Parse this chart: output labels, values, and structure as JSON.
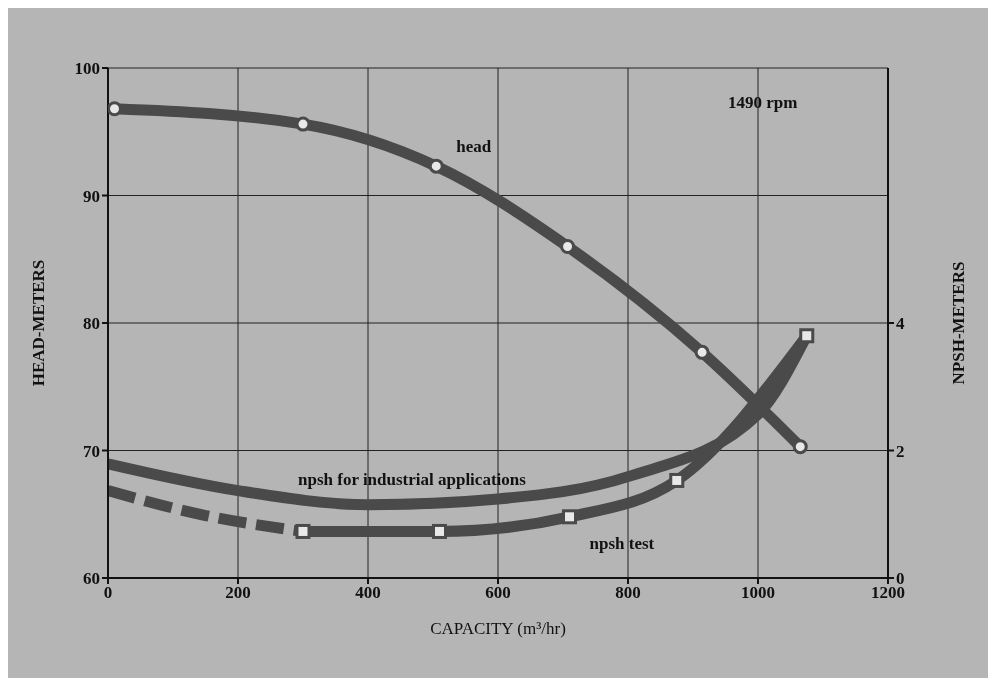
{
  "chart_data": {
    "type": "line",
    "xlabel": "CAPACITY (m³/hr)",
    "ylabel": "HEAD-METERS",
    "y2label": "NPSH-METERS",
    "xlim": [
      0,
      1200
    ],
    "xticks": [
      0,
      200,
      400,
      600,
      800,
      1000,
      1200
    ],
    "ylim": [
      60,
      100
    ],
    "yticks": [
      60,
      70,
      80,
      90,
      100
    ],
    "y2lim": [
      0,
      8
    ],
    "y2ticks": [
      0,
      2,
      4
    ],
    "grid": true,
    "line_style": "solid",
    "annotations": [
      "1490 rpm"
    ],
    "series": [
      {
        "name": "head",
        "color": "#4a4a4a",
        "marker": "circle",
        "x": [
          10,
          300,
          505,
          707,
          914,
          1065
        ],
        "values": [
          96.8,
          95.6,
          92.3,
          86.0,
          77.7,
          70.3
        ]
      },
      {
        "name": "npsh for industrial applications",
        "color": "#4a4a4a",
        "marker": "none",
        "axis": "y2",
        "x": [
          0,
          200,
          400,
          600,
          800,
          1000,
          1075
        ],
        "values": [
          1.79,
          1.37,
          1.15,
          1.24,
          1.59,
          2.57,
          3.8
        ]
      },
      {
        "color": "#4a4a4a",
        "marker": "none",
        "axis": "y2",
        "line_style": "dashed",
        "x": [
          0,
          150,
          300
        ],
        "values": [
          1.37,
          0.98,
          0.73
        ]
      },
      {
        "name": "npsh test",
        "color": "#4a4a4a",
        "marker": "square",
        "axis": "y2",
        "x": [
          300,
          510,
          710,
          875,
          1075
        ],
        "values": [
          0.73,
          0.73,
          0.96,
          1.53,
          3.8
        ]
      }
    ]
  }
}
